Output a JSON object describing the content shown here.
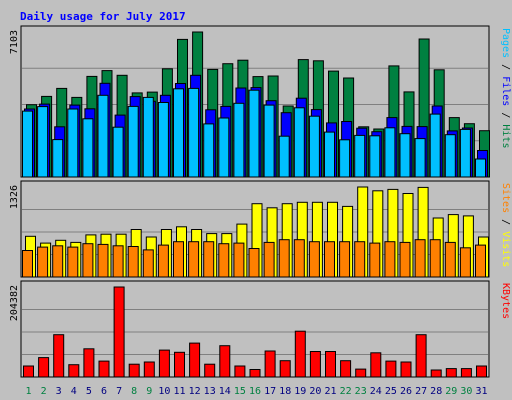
{
  "chart_data": {
    "type": "bar",
    "title": "Daily usage for July 2017",
    "colors": {
      "hits": "#008040",
      "files": "#0000ff",
      "pages": "#00c0ff",
      "visits": "#ffff00",
      "sites": "#ff8000",
      "kbytes": "#ff0000",
      "title": "#0000ff",
      "weekend_day": "#008040",
      "weekday": "#000080",
      "plot_bg": "#c0c0c0",
      "grid": "#808080",
      "border": "#000000"
    },
    "categories": [
      "1",
      "2",
      "3",
      "4",
      "5",
      "6",
      "7",
      "8",
      "9",
      "10",
      "11",
      "12",
      "13",
      "14",
      "15",
      "16",
      "17",
      "18",
      "19",
      "20",
      "21",
      "22",
      "23",
      "24",
      "25",
      "26",
      "27",
      "28",
      "29",
      "30",
      "31"
    ],
    "weekend_days": [
      "1",
      "2",
      "8",
      "9",
      "15",
      "16",
      "22",
      "23",
      "29",
      "30"
    ],
    "panels": [
      {
        "id": "hits_files_pages",
        "max_label": "7103",
        "ymax": 7103,
        "legend": [
          "Pages",
          "/",
          "Files",
          "/",
          "Hits"
        ],
        "series": [
          {
            "name": "Hits",
            "values": [
              3540,
              3950,
              4340,
              3900,
              4930,
              5210,
              4980,
              4120,
              4160,
              5300,
              6740,
              7103,
              5270,
              5550,
              5720,
              4920,
              4950,
              3480,
              5750,
              5690,
              5190,
              4850,
              2460,
              2350,
              5440,
              4170,
              6760,
              5250,
              2910,
              2610,
              2270
            ]
          },
          {
            "name": "Files",
            "values": [
              3330,
              3570,
              2460,
              3520,
              3340,
              4590,
              3030,
              3940,
              3710,
              4000,
              4580,
              4980,
              3290,
              3460,
              4360,
              4380,
              3740,
              3150,
              3860,
              3300,
              2650,
              2720,
              2390,
              2220,
              2910,
              2480,
              2470,
              3480,
              2260,
              2400,
              1300
            ]
          },
          {
            "name": "Pages",
            "values": [
              3230,
              3450,
              1830,
              3330,
              2850,
              4000,
              2440,
              3460,
              3900,
              3650,
              4320,
              4340,
              2600,
              2890,
              3610,
              4250,
              3520,
              2000,
              3390,
              2980,
              2200,
              1820,
              2040,
              2020,
              2410,
              2120,
              1880,
              3080,
              2070,
              2330,
              880
            ]
          }
        ]
      },
      {
        "id": "visits_sites",
        "max_label": "1326",
        "ymax": 1326,
        "legend": [
          "Sites",
          "/",
          "Visits"
        ],
        "series": [
          {
            "name": "Visits",
            "values": [
              600,
              500,
              540,
              510,
              620,
              630,
              630,
              700,
              590,
              700,
              740,
              700,
              640,
              640,
              780,
              1080,
              1020,
              1080,
              1100,
              1100,
              1100,
              1040,
              1326,
              1270,
              1290,
              1230,
              1320,
              870,
              920,
              900,
              590
            ]
          },
          {
            "name": "Sites",
            "values": [
              390,
              440,
              460,
              440,
              490,
              480,
              460,
              450,
              400,
              470,
              520,
              520,
              520,
              490,
              500,
              420,
              510,
              550,
              550,
              520,
              520,
              520,
              520,
              500,
              520,
              510,
              550,
              550,
              510,
              430,
              470
            ]
          }
        ]
      },
      {
        "id": "kbytes",
        "max_label": "204382",
        "ymax": 204382,
        "legend": [
          "KBytes"
        ],
        "series": [
          {
            "name": "KBytes",
            "values": [
              25000,
              44000,
              96000,
              28000,
              64000,
              36000,
              204382,
              29000,
              34000,
              61000,
              56000,
              77000,
              29000,
              71000,
              25000,
              17000,
              59000,
              37000,
              104000,
              58000,
              58000,
              37000,
              18000,
              55000,
              36000,
              34000,
              96000,
              16000,
              19000,
              19000,
              25000
            ]
          }
        ]
      }
    ]
  }
}
